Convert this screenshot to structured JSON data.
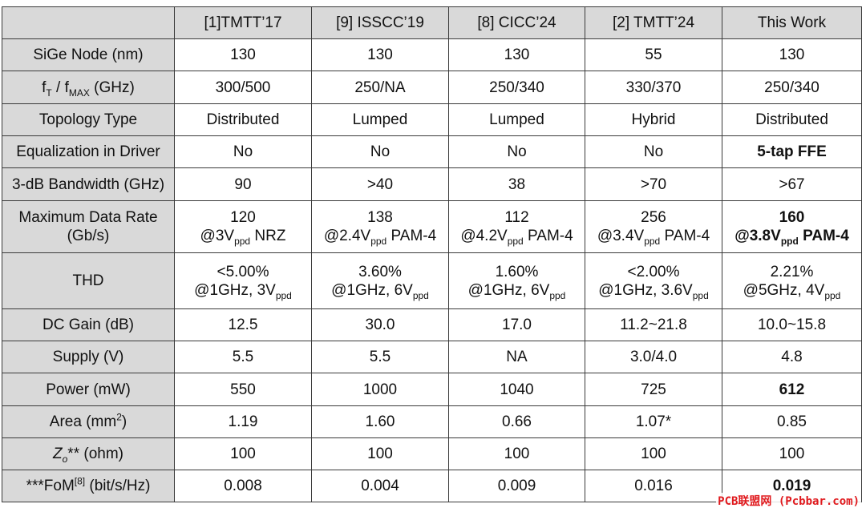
{
  "columns": [
    "[1]TMTT’17",
    "[9] ISSCC’19",
    "[8] CICC’24",
    "[2] TMTT’24",
    "This Work"
  ],
  "rows": {
    "node": {
      "label": "SiGe Node (nm)",
      "values": [
        "130",
        "130",
        "130",
        "55",
        "130"
      ]
    },
    "ft": {
      "label_f": "f",
      "label_t": "T",
      "label_sep": " / f",
      "label_max": "MAX",
      "label_unit": " (GHz)",
      "values": [
        "300/500",
        "250/NA",
        "250/340",
        "330/370",
        "250/340"
      ]
    },
    "topology": {
      "label": "Topology Type",
      "values": [
        "Distributed",
        "Lumped",
        "Lumped",
        "Hybrid",
        "Distributed"
      ]
    },
    "eq": {
      "label": "Equalization in Driver",
      "values": [
        "No",
        "No",
        "No",
        "No",
        "5-tap FFE"
      ]
    },
    "bw": {
      "label": "3-dB Bandwidth (GHz)",
      "values": [
        "90",
        ">40",
        "38",
        ">70",
        ">67"
      ]
    },
    "rate": {
      "label1": "Maximum Data Rate",
      "label2": "(Gb/s)",
      "values": [
        {
          "top": "120",
          "pre": "@3V",
          "sub": "ppd",
          "post": " NRZ"
        },
        {
          "top": "138",
          "pre": "@2.4V",
          "sub": "ppd",
          "post": " PAM-4"
        },
        {
          "top": "112",
          "pre": "@4.2V",
          "sub": "ppd",
          "post": " PAM-4"
        },
        {
          "top": "256",
          "pre": "@3.4V",
          "sub": "ppd",
          "post": " PAM-4"
        },
        {
          "top": "160",
          "pre": "@3.8V",
          "sub": "ppd",
          "post": " PAM-4"
        }
      ]
    },
    "thd": {
      "label": "THD",
      "values": [
        {
          "top": "<5.00%",
          "pre": "@1GHz, 3V",
          "sub": "ppd"
        },
        {
          "top": "3.60%",
          "pre": "@1GHz, 6V",
          "sub": "ppd"
        },
        {
          "top": "1.60%",
          "pre": "@1GHz, 6V",
          "sub": "ppd"
        },
        {
          "top": "<2.00%",
          "pre": "@1GHz, 3.6V",
          "sub": "ppd"
        },
        {
          "top": "2.21%",
          "pre": "@5GHz, 4V",
          "sub": "ppd"
        }
      ]
    },
    "gain": {
      "label": "DC Gain (dB)",
      "values": [
        "12.5",
        "30.0",
        "17.0",
        "11.2~21.8",
        "10.0~15.8"
      ]
    },
    "supply": {
      "label": "Supply (V)",
      "values": [
        "5.5",
        "5.5",
        "NA",
        "3.0/4.0",
        "4.8"
      ]
    },
    "power": {
      "label": "Power (mW)",
      "values": [
        "550",
        "1000",
        "1040",
        "725",
        "612"
      ]
    },
    "area": {
      "label_pre": "Area (mm",
      "label_sup": "2",
      "label_post": ")",
      "values": [
        "1.19",
        "1.60",
        "0.66",
        "1.07*",
        "0.85"
      ]
    },
    "zo": {
      "label_z": "Z",
      "label_o": "o",
      "label_post": "** (ohm)",
      "values": [
        "100",
        "100",
        "100",
        "100",
        "100"
      ]
    },
    "fom": {
      "label_pre": "***FoM",
      "label_sup": "[8]",
      "label_post": " (bit/s/Hz)",
      "values": [
        "0.008",
        "0.004",
        "0.009",
        "0.016",
        "0.019"
      ]
    }
  },
  "watermark": "PCB联盟网 (Pcbbar.com)"
}
